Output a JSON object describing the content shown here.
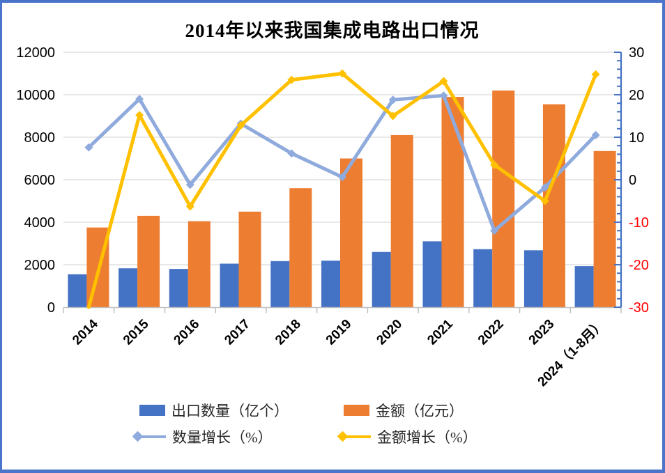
{
  "title": "2014年以来我国集成电路出口情况",
  "chart_data": {
    "type": "bar+line combo",
    "categories": [
      "2014",
      "2015",
      "2016",
      "2017",
      "2018",
      "2019",
      "2020",
      "2021",
      "2022",
      "2023",
      "2024（1-8月）"
    ],
    "series": [
      {
        "name": "出口数量（亿个）",
        "type": "bar",
        "axis": "left",
        "color": "#4472C4",
        "values": [
          1550,
          1830,
          1800,
          2050,
          2170,
          2190,
          2600,
          3100,
          2730,
          2680,
          1930
        ]
      },
      {
        "name": "金额（亿元）",
        "type": "bar",
        "axis": "left",
        "color": "#ED7D31",
        "values": [
          3750,
          4300,
          4050,
          4500,
          5600,
          7000,
          8100,
          9900,
          10200,
          9550,
          7350
        ]
      },
      {
        "name": "数量增长（%）",
        "type": "line",
        "axis": "right",
        "color": "#8FAADC",
        "values": [
          7.6,
          19.0,
          -1.2,
          13.2,
          6.2,
          0.6,
          18.8,
          19.8,
          -12.0,
          -1.8,
          10.5
        ]
      },
      {
        "name": "金额增长（%）",
        "type": "line",
        "axis": "right",
        "color": "#FFC000",
        "first_point_on_axis": true,
        "values": [
          -30.0,
          15.2,
          -6.3,
          12.8,
          23.5,
          25.0,
          15.0,
          23.2,
          3.5,
          -5.0,
          24.8
        ]
      }
    ],
    "left_axis": {
      "min": 0,
      "max": 12000,
      "step": 2000,
      "tick_labels": [
        "0",
        "2000",
        "4000",
        "6000",
        "8000",
        "10000",
        "12000"
      ]
    },
    "right_axis": {
      "min": -30,
      "max": 30,
      "step": 10,
      "minor_step": 2,
      "tick_labels": [
        "30",
        "20",
        "10",
        "0",
        "-10",
        "-20",
        "-30"
      ],
      "negative_color": "#FF0000"
    },
    "grid": true,
    "legend_position": "bottom"
  },
  "colors": {
    "gridline": "#D9D9D9",
    "axis_line": "#BFBFBF",
    "right_axis_line": "#4472C4",
    "tick_label": "#000000",
    "negative_tick_label": "#FF0000",
    "border": "#4A74C9"
  }
}
